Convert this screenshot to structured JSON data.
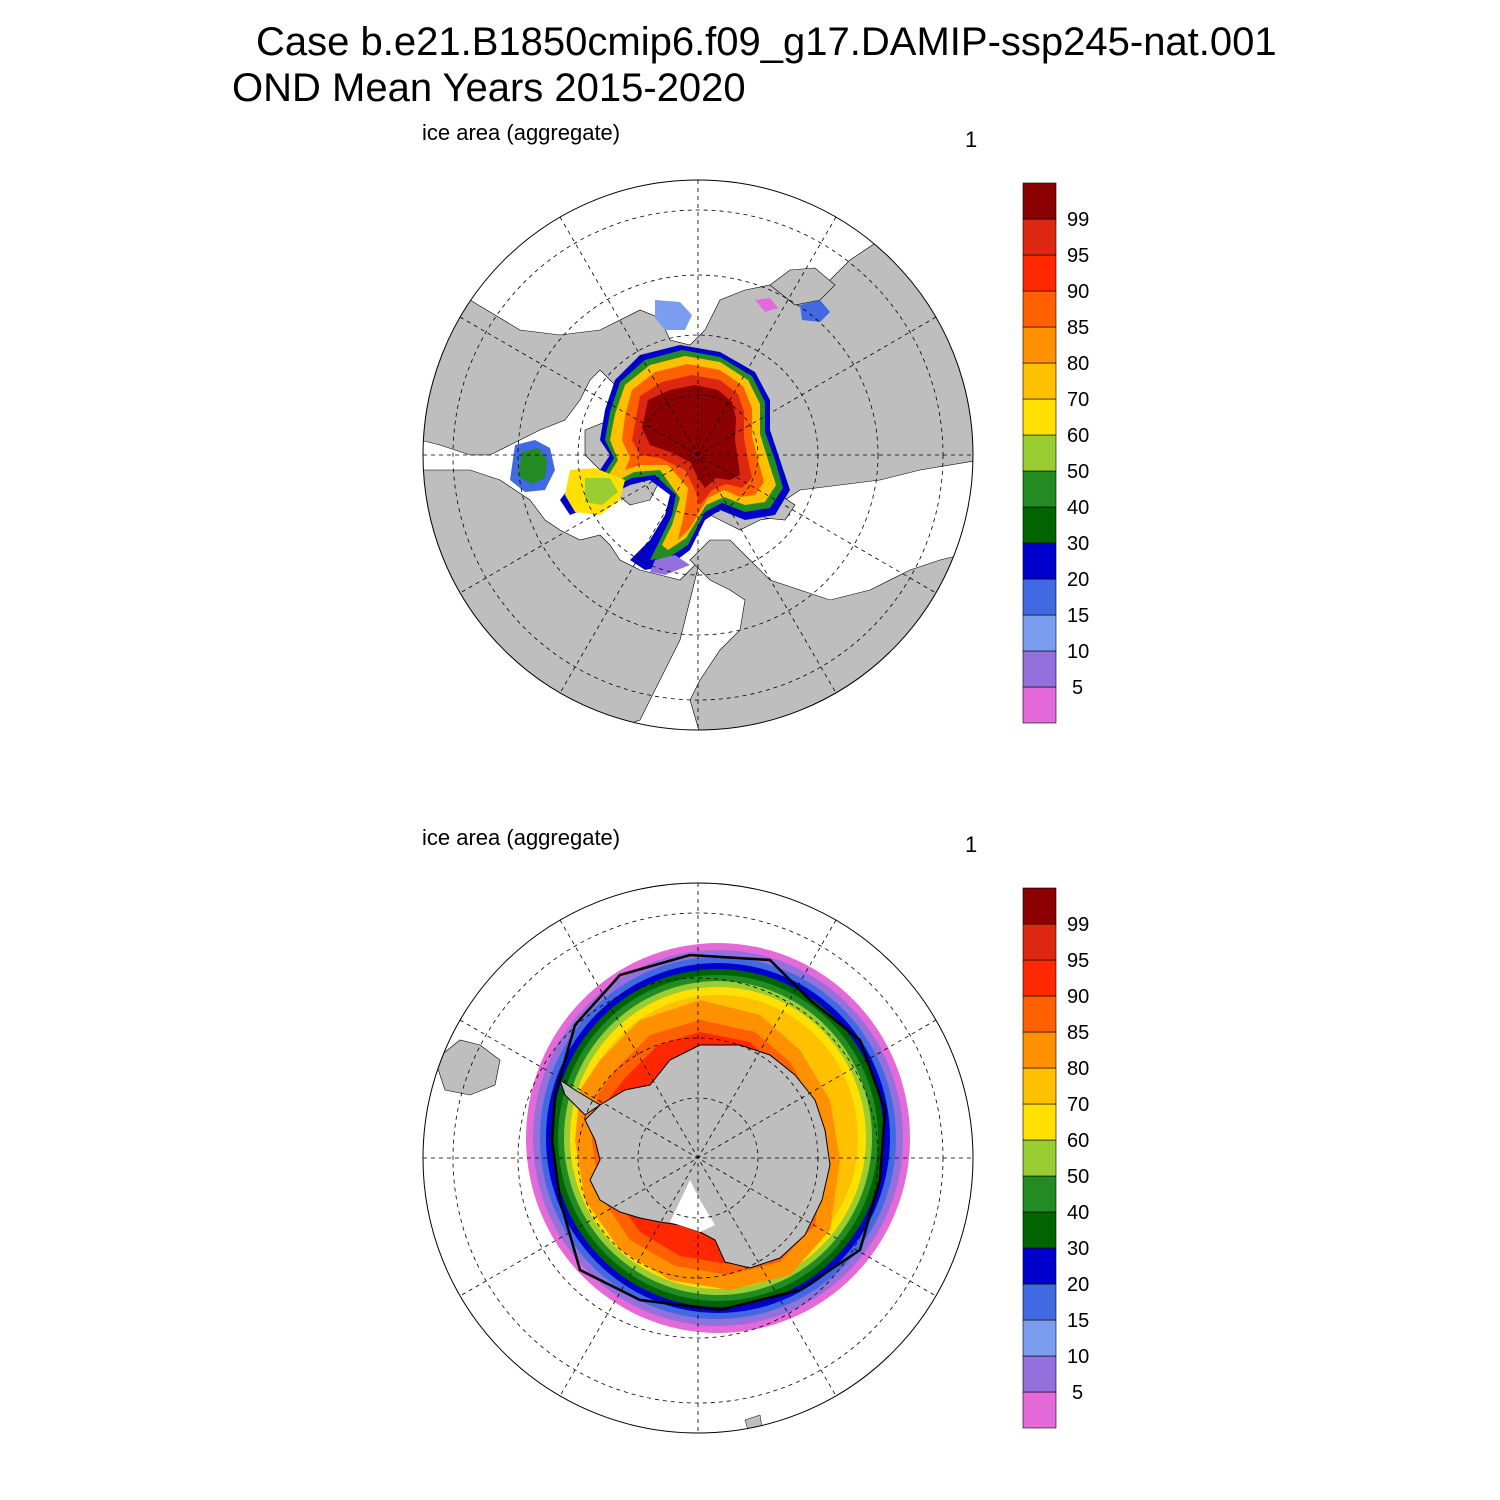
{
  "title_line1": "Case b.e21.B1850cmip6.f09_g17.DAMIP-ssp245-nat.001",
  "title_line2": "OND Mean   Years 2015-2020",
  "panels": [
    {
      "id": "north",
      "hemisphere": "Arctic",
      "variable_label": "ice area  (aggregate)",
      "right_label": "1"
    },
    {
      "id": "south",
      "hemisphere": "Antarctic",
      "variable_label": "ice area  (aggregate)",
      "right_label": "1"
    }
  ],
  "colorbar": {
    "levels": [
      "5",
      "10",
      "15",
      "20",
      "30",
      "40",
      "50",
      "60",
      "70",
      "80",
      "85",
      "90",
      "95",
      "99"
    ],
    "colors_bottom_to_top": [
      "#e36ad8",
      "#9370db",
      "#7b9df0",
      "#4169e1",
      "#0000cd",
      "#006400",
      "#228b22",
      "#9acd32",
      "#ffe000",
      "#ffc000",
      "#ff9000",
      "#ff6000",
      "#ff2800",
      "#dc2810",
      "#8b0000"
    ]
  },
  "colors": {
    "land": "#bebebe",
    "ocean": "#ffffff",
    "grid": "#000000",
    "outline": "#000000"
  }
}
